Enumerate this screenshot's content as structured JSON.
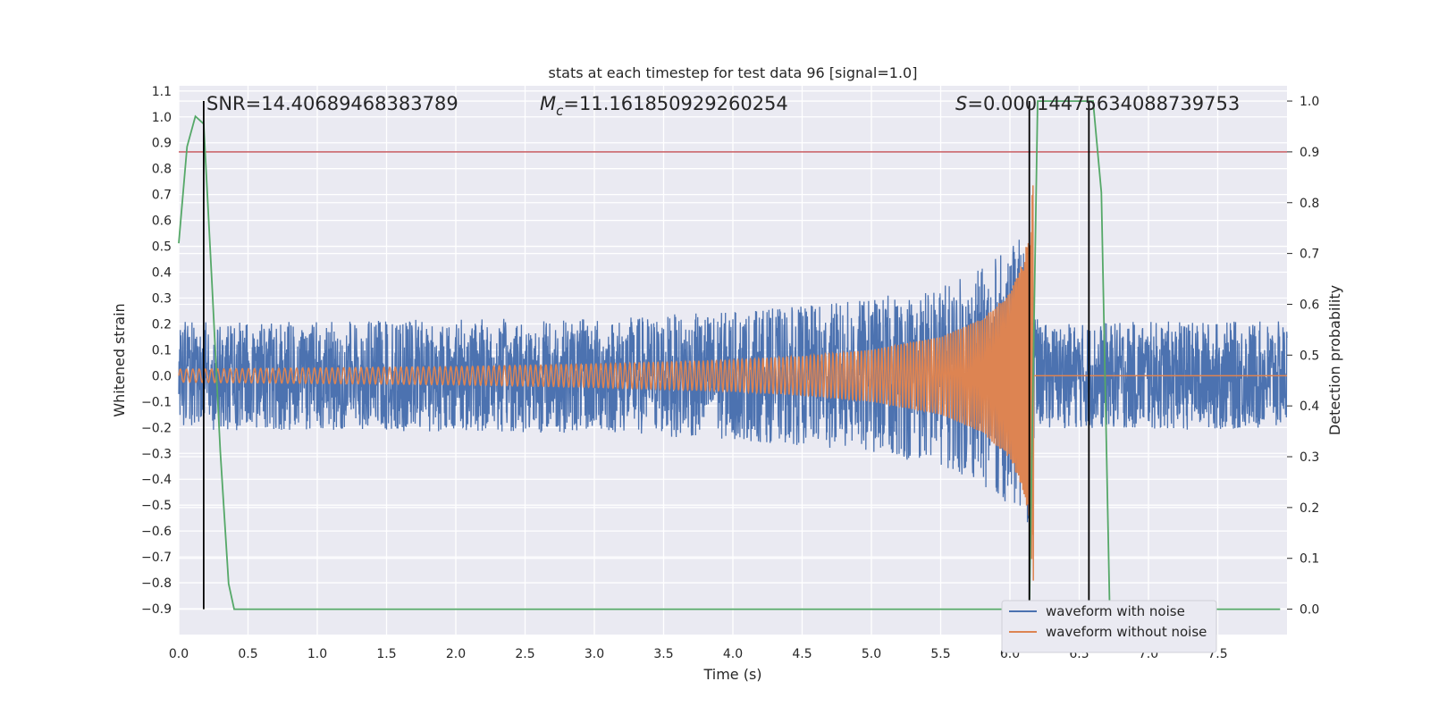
{
  "chart_data": {
    "type": "line",
    "title": "stats at each timestep for test data 96 [signal=1.0]",
    "xlabel": "Time (s)",
    "ylabel": "Whitened strain",
    "y2label": "Detection probability",
    "xlim": [
      0.0,
      8.0
    ],
    "ylim": [
      -1.0,
      1.12
    ],
    "y2lim": [
      -0.05,
      1.03
    ],
    "xticks": [
      0.0,
      0.5,
      1.0,
      1.5,
      2.0,
      2.5,
      3.0,
      3.5,
      4.0,
      4.5,
      5.0,
      5.5,
      6.0,
      6.5,
      7.0,
      7.5
    ],
    "yticks": [
      -0.9,
      -0.8,
      -0.7,
      -0.6,
      -0.5,
      -0.4,
      -0.3,
      -0.2,
      -0.1,
      0.0,
      0.1,
      0.2,
      0.3,
      0.4,
      0.5,
      0.6,
      0.7,
      0.8,
      0.9,
      1.0,
      1.1
    ],
    "y2ticks": [
      0.0,
      0.1,
      0.2,
      0.3,
      0.4,
      0.5,
      0.6,
      0.7,
      0.8,
      0.9,
      1.0
    ],
    "xtick_labels": [
      "0.0",
      "0.5",
      "1.0",
      "1.5",
      "2.0",
      "2.5",
      "3.0",
      "3.5",
      "4.0",
      "4.5",
      "5.0",
      "5.5",
      "6.0",
      "6.5",
      "7.0",
      "7.5"
    ],
    "ytick_labels": [
      "−0.9",
      "−0.8",
      "−0.7",
      "−0.6",
      "−0.5",
      "−0.4",
      "−0.3",
      "−0.2",
      "−0.1",
      "0.0",
      "0.1",
      "0.2",
      "0.3",
      "0.4",
      "0.5",
      "0.6",
      "0.7",
      "0.8",
      "0.9",
      "1.0",
      "1.1"
    ],
    "y2tick_labels": [
      "0.0",
      "0.1",
      "0.2",
      "0.3",
      "0.4",
      "0.5",
      "0.6",
      "0.7",
      "0.8",
      "0.9",
      "1.0"
    ],
    "grid": true,
    "legend_placement": "lower-right",
    "annotations": {
      "snr_text": "SNR=14.40689468383789",
      "mc_symbol": "M",
      "mc_sub": "c",
      "mc_value": "=11.161850929260254",
      "s_symbol": "S",
      "s_value": "=0.00014475634088739753"
    },
    "series": [
      {
        "name": "waveform with noise",
        "color": "#4c72b0",
        "axis": "left",
        "envelope_points": [
          [
            0.0,
            0.21
          ],
          [
            1.0,
            0.21
          ],
          [
            2.0,
            0.22
          ],
          [
            3.0,
            0.22
          ],
          [
            4.0,
            0.25
          ],
          [
            4.5,
            0.27
          ],
          [
            5.0,
            0.3
          ],
          [
            5.5,
            0.35
          ],
          [
            5.8,
            0.42
          ],
          [
            6.0,
            0.5
          ],
          [
            6.1,
            0.55
          ],
          [
            6.15,
            0.6
          ],
          [
            6.2,
            0.2
          ],
          [
            7.0,
            0.21
          ],
          [
            8.0,
            0.21
          ]
        ]
      },
      {
        "name": "waveform without noise",
        "color": "#dd8452",
        "axis": "left",
        "envelope_points": [
          [
            0.0,
            0.025
          ],
          [
            1.0,
            0.03
          ],
          [
            2.0,
            0.035
          ],
          [
            3.0,
            0.045
          ],
          [
            4.0,
            0.06
          ],
          [
            4.5,
            0.075
          ],
          [
            5.0,
            0.1
          ],
          [
            5.5,
            0.15
          ],
          [
            5.8,
            0.22
          ],
          [
            6.0,
            0.32
          ],
          [
            6.1,
            0.45
          ],
          [
            6.15,
            0.6
          ],
          [
            6.17,
            0.9
          ],
          [
            6.2,
            0.0
          ],
          [
            8.0,
            0.0
          ]
        ]
      },
      {
        "name": "",
        "color": "#55a868",
        "axis": "right",
        "points": [
          [
            0.0,
            0.72
          ],
          [
            0.06,
            0.91
          ],
          [
            0.12,
            0.97
          ],
          [
            0.18,
            0.955
          ],
          [
            0.24,
            0.64
          ],
          [
            0.3,
            0.31
          ],
          [
            0.36,
            0.05
          ],
          [
            0.4,
            0.0
          ],
          [
            6.14,
            0.0
          ],
          [
            6.2,
            1.0
          ],
          [
            6.6,
            1.0
          ],
          [
            6.66,
            0.82
          ],
          [
            6.72,
            0.0
          ],
          [
            7.95,
            0.0
          ]
        ]
      }
    ],
    "threshold": {
      "axis": "right",
      "value": 0.9,
      "color": "#c44e52"
    },
    "vlines": [
      {
        "x": 0.18,
        "color": "#000000"
      },
      {
        "x": 6.14,
        "color": "#000000"
      },
      {
        "x": 6.57,
        "color": "#000000"
      }
    ],
    "colors": {
      "plot_bg": "#eaeaf2",
      "grid": "#ffffff",
      "noise": "#4c72b0",
      "clean": "#dd8452",
      "prob": "#55a868",
      "threshold": "#c44e52"
    }
  }
}
